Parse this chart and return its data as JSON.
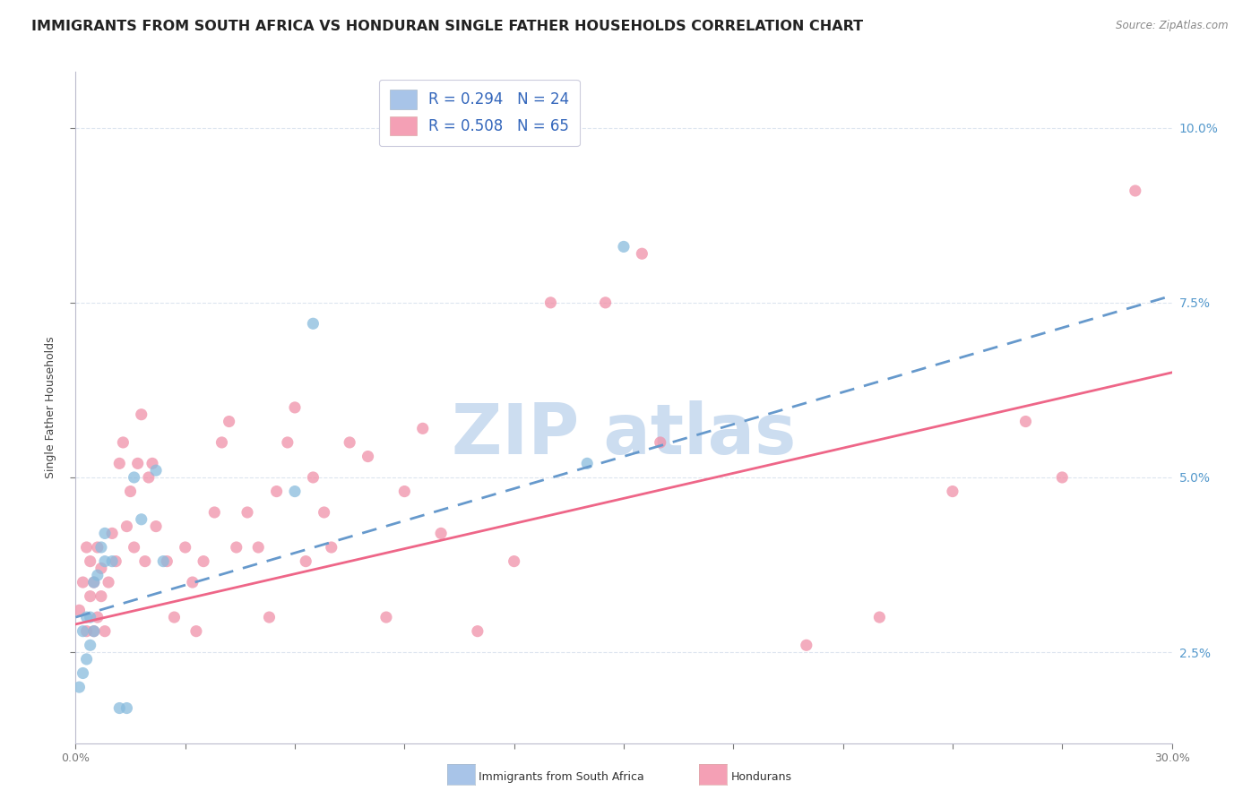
{
  "title": "IMMIGRANTS FROM SOUTH AFRICA VS HONDURAN SINGLE FATHER HOUSEHOLDS CORRELATION CHART",
  "source": "Source: ZipAtlas.com",
  "ylabel": "Single Father Households",
  "xlim": [
    0.0,
    0.3
  ],
  "ylim": [
    0.012,
    0.108
  ],
  "y_ticks": [
    0.025,
    0.05,
    0.075,
    0.1
  ],
  "y_tick_labels": [
    "2.5%",
    "5.0%",
    "7.5%",
    "10.0%"
  ],
  "x_ticks": [
    0.0,
    0.03,
    0.06,
    0.09,
    0.12,
    0.15,
    0.18,
    0.21,
    0.24,
    0.27,
    0.3
  ],
  "legend_color1": "#a8c4e8",
  "legend_color2": "#f4a0b5",
  "blue_color": "#88bbdd",
  "pink_color": "#f090a8",
  "trendline_blue_color": "#6699cc",
  "trendline_pink_color": "#ee6688",
  "watermark_color": "#ccddf0",
  "blue_dots_x": [
    0.001,
    0.002,
    0.002,
    0.003,
    0.003,
    0.004,
    0.004,
    0.005,
    0.005,
    0.006,
    0.007,
    0.008,
    0.008,
    0.01,
    0.012,
    0.014,
    0.016,
    0.018,
    0.022,
    0.024,
    0.06,
    0.065,
    0.14,
    0.15
  ],
  "blue_dots_y": [
    0.02,
    0.022,
    0.028,
    0.024,
    0.03,
    0.026,
    0.03,
    0.028,
    0.035,
    0.036,
    0.04,
    0.042,
    0.038,
    0.038,
    0.017,
    0.017,
    0.05,
    0.044,
    0.051,
    0.038,
    0.048,
    0.072,
    0.052,
    0.083
  ],
  "pink_dots_x": [
    0.001,
    0.002,
    0.003,
    0.003,
    0.004,
    0.004,
    0.005,
    0.005,
    0.006,
    0.006,
    0.007,
    0.007,
    0.008,
    0.009,
    0.01,
    0.011,
    0.012,
    0.013,
    0.014,
    0.015,
    0.016,
    0.017,
    0.018,
    0.019,
    0.02,
    0.021,
    0.022,
    0.025,
    0.027,
    0.03,
    0.032,
    0.033,
    0.035,
    0.038,
    0.04,
    0.042,
    0.044,
    0.047,
    0.05,
    0.053,
    0.055,
    0.058,
    0.06,
    0.063,
    0.065,
    0.068,
    0.07,
    0.075,
    0.08,
    0.085,
    0.09,
    0.095,
    0.1,
    0.11,
    0.12,
    0.13,
    0.145,
    0.155,
    0.16,
    0.2,
    0.22,
    0.24,
    0.26,
    0.27,
    0.29
  ],
  "pink_dots_y": [
    0.031,
    0.035,
    0.028,
    0.04,
    0.033,
    0.038,
    0.028,
    0.035,
    0.03,
    0.04,
    0.033,
    0.037,
    0.028,
    0.035,
    0.042,
    0.038,
    0.052,
    0.055,
    0.043,
    0.048,
    0.04,
    0.052,
    0.059,
    0.038,
    0.05,
    0.052,
    0.043,
    0.038,
    0.03,
    0.04,
    0.035,
    0.028,
    0.038,
    0.045,
    0.055,
    0.058,
    0.04,
    0.045,
    0.04,
    0.03,
    0.048,
    0.055,
    0.06,
    0.038,
    0.05,
    0.045,
    0.04,
    0.055,
    0.053,
    0.03,
    0.048,
    0.057,
    0.042,
    0.028,
    0.038,
    0.075,
    0.075,
    0.082,
    0.055,
    0.026,
    0.03,
    0.048,
    0.058,
    0.05,
    0.091
  ],
  "trendline_blue_x0": 0.0,
  "trendline_blue_y0": 0.03,
  "trendline_blue_x1": 0.3,
  "trendline_blue_y1": 0.076,
  "trendline_pink_x0": 0.0,
  "trendline_pink_y0": 0.029,
  "trendline_pink_x1": 0.3,
  "trendline_pink_y1": 0.065,
  "background_color": "#ffffff",
  "grid_color": "#dde5ef",
  "title_fontsize": 11.5,
  "axis_fontsize": 9,
  "legend_fontsize": 12
}
